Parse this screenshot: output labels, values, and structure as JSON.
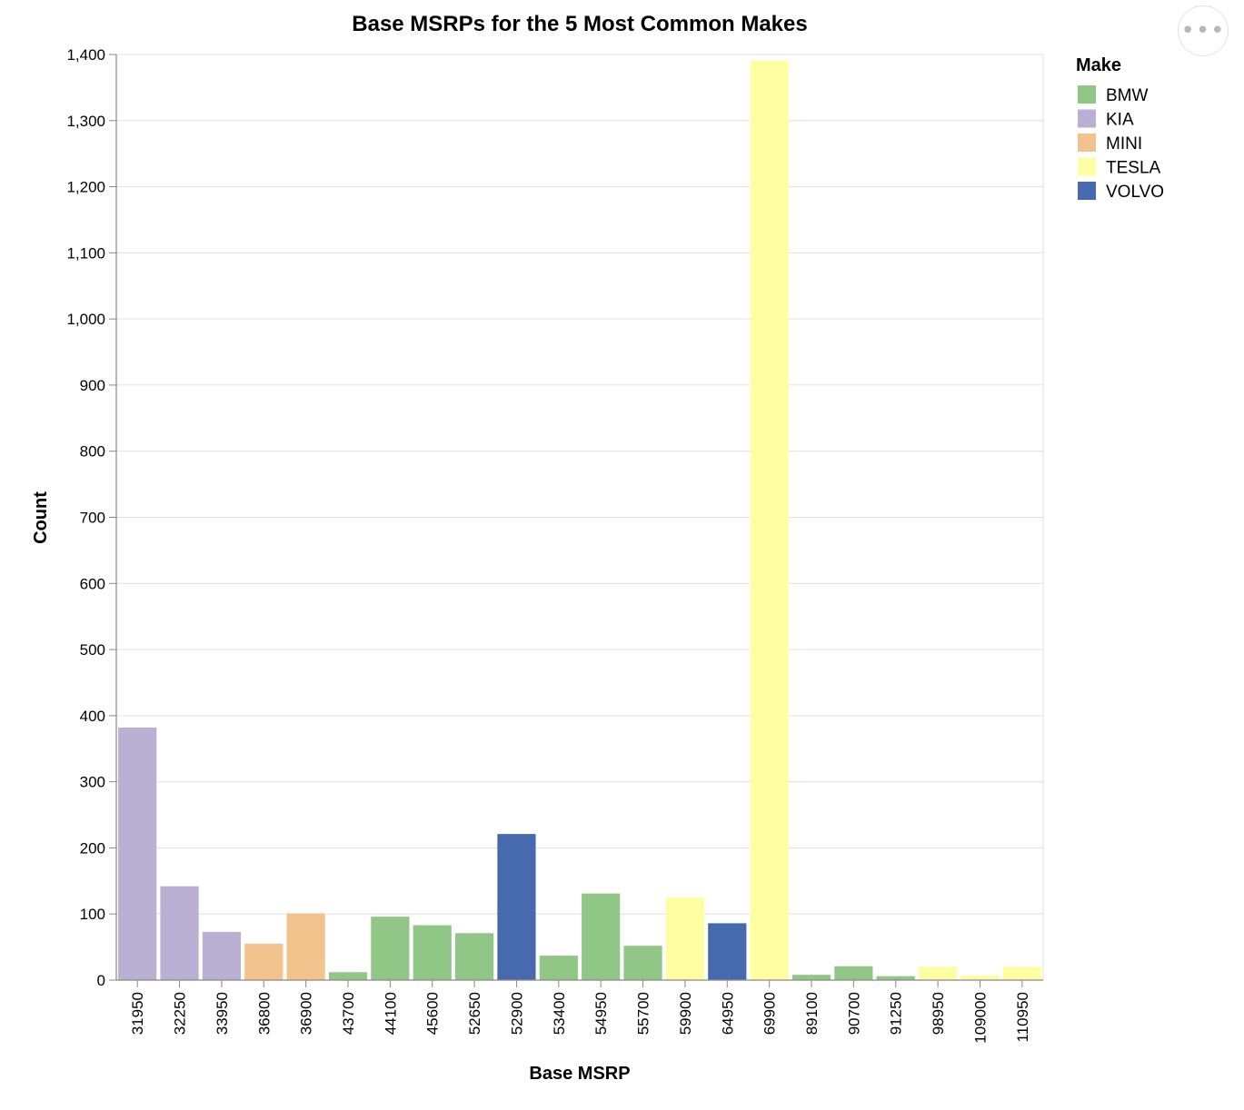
{
  "actions_menu": {
    "icon": "ellipsis-icon",
    "glyph": "•••"
  },
  "chart_data": {
    "type": "bar",
    "title": "Base MSRPs for the 5 Most Common Makes",
    "xlabel": "Base MSRP",
    "ylabel": "Count",
    "ylim": [
      0,
      1400
    ],
    "yticks": [
      "0",
      "100",
      "200",
      "300",
      "400",
      "500",
      "600",
      "700",
      "800",
      "900",
      "1,000",
      "1,100",
      "1,200",
      "1,300",
      "1,400"
    ],
    "categories": [
      "31950",
      "32250",
      "33950",
      "36800",
      "36900",
      "43700",
      "44100",
      "45600",
      "52650",
      "52900",
      "53400",
      "54950",
      "55700",
      "59900",
      "64950",
      "69900",
      "89100",
      "90700",
      "91250",
      "98950",
      "109000",
      "110950"
    ],
    "values": [
      382,
      142,
      73,
      55,
      101,
      12,
      96,
      83,
      71,
      221,
      37,
      131,
      52,
      125,
      86,
      1391,
      8,
      21,
      6,
      20,
      7,
      20
    ],
    "makes": [
      "KIA",
      "KIA",
      "KIA",
      "MINI",
      "MINI",
      "BMW",
      "BMW",
      "BMW",
      "BMW",
      "VOLVO",
      "BMW",
      "BMW",
      "BMW",
      "TESLA",
      "VOLVO",
      "TESLA",
      "BMW",
      "BMW",
      "BMW",
      "TESLA",
      "TESLA",
      "TESLA"
    ],
    "legend": {
      "title": "Make",
      "position": "right",
      "entries": [
        {
          "name": "BMW",
          "color": "#91c786"
        },
        {
          "name": "KIA",
          "color": "#b9b0d3"
        },
        {
          "name": "MINI",
          "color": "#f3c38e"
        },
        {
          "name": "TESLA",
          "color": "#fefea2"
        },
        {
          "name": "VOLVO",
          "color": "#4769ad"
        }
      ]
    },
    "grid": true
  }
}
